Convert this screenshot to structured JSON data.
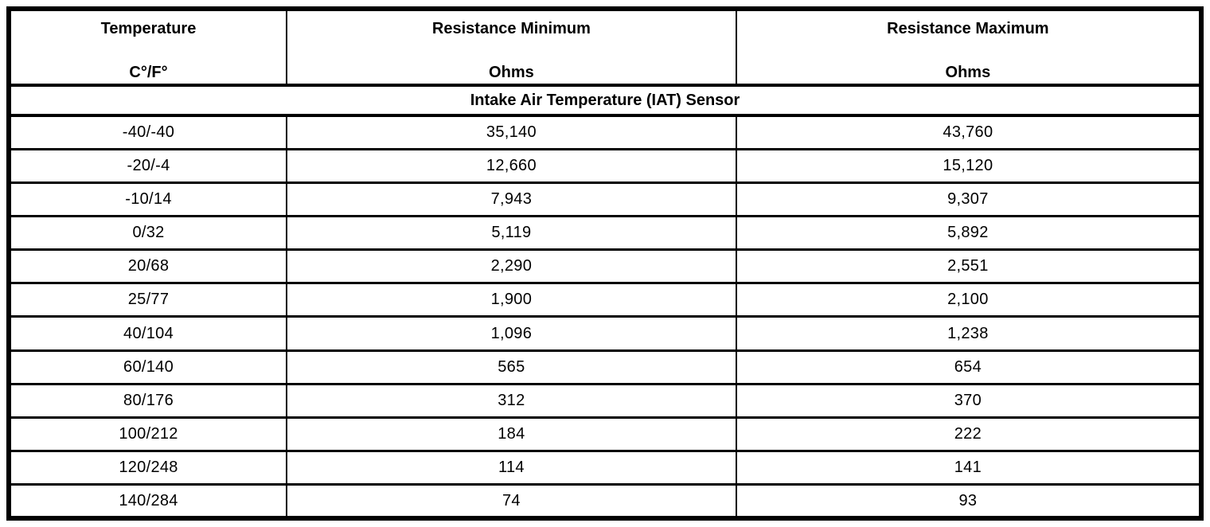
{
  "table": {
    "columns": [
      {
        "label": "Temperature",
        "unit": "C°/F°"
      },
      {
        "label": "Resistance Minimum",
        "unit": "Ohms"
      },
      {
        "label": "Resistance Maximum",
        "unit": "Ohms"
      }
    ],
    "section_title": "Intake Air Temperature (IAT) Sensor",
    "rows": [
      {
        "temperature": "-40/-40",
        "resistance_min": "35,140",
        "resistance_max": "43,760"
      },
      {
        "temperature": "-20/-4",
        "resistance_min": "12,660",
        "resistance_max": "15,120"
      },
      {
        "temperature": "-10/14",
        "resistance_min": "7,943",
        "resistance_max": "9,307"
      },
      {
        "temperature": "0/32",
        "resistance_min": "5,119",
        "resistance_max": "5,892"
      },
      {
        "temperature": "20/68",
        "resistance_min": "2,290",
        "resistance_max": "2,551"
      },
      {
        "temperature": "25/77",
        "resistance_min": "1,900",
        "resistance_max": "2,100"
      },
      {
        "temperature": "40/104",
        "resistance_min": "1,096",
        "resistance_max": "1,238"
      },
      {
        "temperature": "60/140",
        "resistance_min": "565",
        "resistance_max": "654"
      },
      {
        "temperature": "80/176",
        "resistance_min": "312",
        "resistance_max": "370"
      },
      {
        "temperature": "100/212",
        "resistance_min": "184",
        "resistance_max": "222"
      },
      {
        "temperature": "120/248",
        "resistance_min": "114",
        "resistance_max": "141"
      },
      {
        "temperature": "140/284",
        "resistance_min": "74",
        "resistance_max": "93"
      }
    ],
    "colors": {
      "border": "#000000",
      "text": "#000000",
      "background": "#ffffff"
    }
  }
}
